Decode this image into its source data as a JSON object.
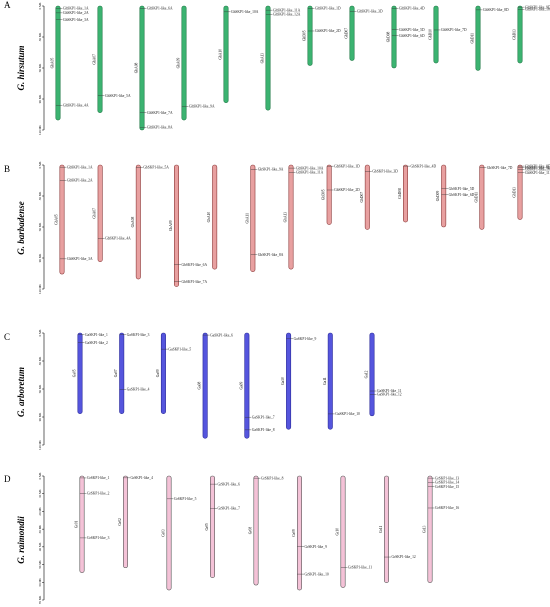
{
  "panels": [
    {
      "letter": "A",
      "species": "G. hirsutum",
      "color": "#3cb371",
      "stroke": "#1f7a46",
      "ticks": [
        "0 Mb",
        "30 Mb",
        "60 Mb",
        "90 Mb",
        "120 Mb"
      ],
      "chromosomes": [
        {
          "name": "GhA05",
          "len": 0.92,
          "genes": [
            {
              "label": "GhSKP1-like_1A",
              "pos": 0.02
            },
            {
              "label": "GhSKP1-like_2A",
              "pos": 0.06
            },
            {
              "label": "GhSKP1-like_3A",
              "pos": 0.12
            },
            {
              "label": "GhSKP1-like_4A",
              "pos": 0.87
            }
          ]
        },
        {
          "name": "GhA07",
          "len": 0.86,
          "genes": [
            {
              "label": "GhSKP1-like_5A",
              "pos": 0.84
            }
          ]
        },
        {
          "name": "GhA08",
          "len": 1.0,
          "genes": [
            {
              "label": "GhSKP1-like_6A",
              "pos": 0.02
            },
            {
              "label": "GhSKP1-like_7A",
              "pos": 0.86
            },
            {
              "label": "GhSKP1-like_8A",
              "pos": 0.98
            }
          ]
        },
        {
          "name": "GhA09",
          "len": 0.92,
          "genes": [
            {
              "label": "GhSKP1-like_9A",
              "pos": 0.88
            }
          ]
        },
        {
          "name": "GhA10",
          "len": 0.78,
          "genes": [
            {
              "label": "GhSKP1-like_10A",
              "pos": 0.06
            }
          ]
        },
        {
          "name": "GhA13",
          "len": 0.84,
          "genes": [
            {
              "label": "GhSKP1-like_11A",
              "pos": 0.04
            },
            {
              "label": "GhSKP1-like_12A",
              "pos": 0.08
            }
          ]
        },
        {
          "name": "GhD05",
          "len": 0.48,
          "genes": [
            {
              "label": "GhSKP1-like_1D",
              "pos": 0.04
            },
            {
              "label": "GhSKP1-like_2D",
              "pos": 0.42
            }
          ]
        },
        {
          "name": "GhD07",
          "len": 0.44,
          "genes": [
            {
              "label": "GhSKP1-like_3D",
              "pos": 0.1
            }
          ]
        },
        {
          "name": "GhD08",
          "len": 0.5,
          "genes": [
            {
              "label": "GhSKP1-like_4D",
              "pos": 0.04
            },
            {
              "label": "GhSKP1-like_5D",
              "pos": 0.38
            },
            {
              "label": "GhSKP1-like_6D",
              "pos": 0.48
            }
          ]
        },
        {
          "name": "GhD10",
          "len": 0.46,
          "genes": [
            {
              "label": "GhSKP1-like_7D",
              "pos": 0.42
            }
          ]
        },
        {
          "name": "GhD11",
          "len": 0.52,
          "genes": [
            {
              "label": "GhSKP1-like_8D",
              "pos": 0.06
            }
          ]
        },
        {
          "name": "GhD13",
          "len": 0.46,
          "genes": [
            {
              "label": "GhSKP1-like_9D",
              "pos": 0.02
            },
            {
              "label": "GhSKP1-like_10D",
              "pos": 0.06
            }
          ]
        }
      ]
    },
    {
      "letter": "B",
      "species": "G. barbadense",
      "color": "#e8a0a0",
      "stroke": "#8c3b3b",
      "ticks": [
        "0 Mb",
        "30 Mb",
        "60 Mb",
        "90 Mb",
        "120 Mb"
      ],
      "chromosomes": [
        {
          "name": "GbA05",
          "len": 0.88,
          "genes": [
            {
              "label": "GbSKP1-like_1A",
              "pos": 0.02
            },
            {
              "label": "GbSKP1-like_2A",
              "pos": 0.14
            },
            {
              "label": "GbSKP1-like_3A",
              "pos": 0.86
            }
          ]
        },
        {
          "name": "GbA07",
          "len": 0.78,
          "genes": [
            {
              "label": "GbSKP1-like_4A",
              "pos": 0.76
            }
          ]
        },
        {
          "name": "GbA08",
          "len": 0.92,
          "genes": [
            {
              "label": "GbSKP1-like_5A",
              "pos": 0.02
            }
          ]
        },
        {
          "name": "GbA09",
          "len": 0.98,
          "genes": [
            {
              "label": "GbSKP1-like_6A",
              "pos": 0.82
            },
            {
              "label": "GbSKP1-like_7A",
              "pos": 0.96
            }
          ]
        },
        {
          "name": "GbA10",
          "len": 0.84,
          "genes": []
        },
        {
          "name": "GbA11",
          "len": 0.86,
          "genes": [
            {
              "label": "GbSKP1-like_8A",
              "pos": 0.84
            },
            {
              "label": "GbSKP1-like_9A",
              "pos": 0.04
            }
          ]
        },
        {
          "name": "GbA13",
          "len": 0.84,
          "genes": [
            {
              "label": "GbSKP1-like_10A",
              "pos": 0.03
            },
            {
              "label": "GbSKP1-like_11A",
              "pos": 0.07
            }
          ]
        },
        {
          "name": "GbD05",
          "len": 0.48,
          "genes": [
            {
              "label": "GbSKP1-like_1D",
              "pos": 0.02
            },
            {
              "label": "GbSKP1-like_2D",
              "pos": 0.42
            }
          ]
        },
        {
          "name": "GbD07",
          "len": 0.52,
          "genes": [
            {
              "label": "GbSKP1-like_3D",
              "pos": 0.1
            }
          ]
        },
        {
          "name": "GbD08",
          "len": 0.46,
          "genes": [
            {
              "label": "GbSKP1-like_4D",
              "pos": 0.02
            }
          ]
        },
        {
          "name": "GbD09",
          "len": 0.5,
          "genes": [
            {
              "label": "GbSKP1-like_5D",
              "pos": 0.38
            },
            {
              "label": "GbSKP1-like_6D",
              "pos": 0.48
            }
          ]
        },
        {
          "name": "GbD11",
          "len": 0.52,
          "genes": [
            {
              "label": "GbSKP1-like_7D",
              "pos": 0.04
            }
          ]
        },
        {
          "name": "GbD13",
          "len": 0.44,
          "genes": [
            {
              "label": "GbSKP1-like_8D",
              "pos": 0.02
            },
            {
              "label": "GbSKP1-like_9D",
              "pos": 0.05
            },
            {
              "label": "GbSKP1-like_10D",
              "pos": 0.08
            },
            {
              "label": "GbSKP1-like_11D",
              "pos": 0.14
            }
          ]
        }
      ]
    },
    {
      "letter": "C",
      "species": "G. arboretum",
      "color": "#5555dd",
      "stroke": "#2a2a99",
      "ticks": [
        "0 Mb",
        "30 Mb",
        "60 Mb",
        "90 Mb",
        "120 Mb"
      ],
      "chromosomes": [
        {
          "name": "Ga05",
          "len": 0.72,
          "genes": [
            {
              "label": "GaSKP1-like_1",
              "pos": 0.02
            },
            {
              "label": "GaSKP1-like_2",
              "pos": 0.12
            }
          ]
        },
        {
          "name": "Ga07",
          "len": 0.72,
          "genes": [
            {
              "label": "GaSKP1-like_3",
              "pos": 0.02
            },
            {
              "label": "GaSKP1-like_4",
              "pos": 0.7
            }
          ]
        },
        {
          "name": "Ga09",
          "len": 0.72,
          "genes": [
            {
              "label": "GaSKP1-like_5",
              "pos": 0.2
            }
          ]
        },
        {
          "name": "Ga08",
          "len": 0.94,
          "genes": [
            {
              "label": "GaSKP1-like_6",
              "pos": 0.02
            }
          ]
        },
        {
          "name": "Ga09",
          "len": 0.94,
          "genes": [
            {
              "label": "GaSKP1-like_7",
              "pos": 0.8
            },
            {
              "label": "GaSKP1-like_8",
              "pos": 0.92
            }
          ]
        },
        {
          "name": "Ga10",
          "len": 0.86,
          "genes": [
            {
              "label": "GaSKP1-like_9",
              "pos": 0.06
            }
          ]
        },
        {
          "name": "Ga11",
          "len": 0.86,
          "genes": [
            {
              "label": "GaSKP1-like_10",
              "pos": 0.84
            }
          ]
        },
        {
          "name": "Ga12",
          "len": 0.74,
          "genes": [
            {
              "label": "GaSKP1-like_11",
              "pos": 0.7
            },
            {
              "label": "GaSKP1-like_12",
              "pos": 0.74
            }
          ]
        }
      ]
    },
    {
      "letter": "D",
      "species": "G. raimondii",
      "color": "#f4c2d7",
      "stroke": "#555555",
      "ticks": [
        "0 Mb",
        "10 Mb",
        "20 Mb",
        "30 Mb",
        "40 Mb",
        "50 Mb",
        "60 Mb",
        "70 Mb"
      ],
      "chromosomes": [
        {
          "name": "Gr01",
          "len": 0.78,
          "genes": [
            {
              "label": "GrSKP1-like_1",
              "pos": 0.02
            },
            {
              "label": "GrSKP1-like_2",
              "pos": 0.18
            },
            {
              "label": "GrSKP1-like_3",
              "pos": 0.64
            }
          ]
        },
        {
          "name": "Gr02",
          "len": 0.74,
          "genes": [
            {
              "label": "GrSKP1-like_4",
              "pos": 0.02
            }
          ]
        },
        {
          "name": "Gr03",
          "len": 0.92,
          "genes": [
            {
              "label": "GrSKP1-like_5",
              "pos": 0.2
            }
          ]
        },
        {
          "name": "Gr05",
          "len": 0.82,
          "genes": [
            {
              "label": "GrSKP1-like_6",
              "pos": 0.08
            },
            {
              "label": "GrSKP1-like_7",
              "pos": 0.32
            }
          ]
        },
        {
          "name": "Gr08",
          "len": 0.88,
          "genes": [
            {
              "label": "GrSKP1-like_8",
              "pos": 0.02
            }
          ]
        },
        {
          "name": "Gr09",
          "len": 0.92,
          "genes": [
            {
              "label": "GrSKP1-like_9",
              "pos": 0.62
            },
            {
              "label": "GrSKP1-like_10",
              "pos": 0.86
            }
          ]
        },
        {
          "name": "Gr10",
          "len": 0.9,
          "genes": [
            {
              "label": "GrSKP1-like_11",
              "pos": 0.82
            }
          ]
        },
        {
          "name": "Gr11",
          "len": 0.86,
          "genes": [
            {
              "label": "GrSKP1-like_12",
              "pos": 0.76
            }
          ]
        },
        {
          "name": "Gr13",
          "len": 0.86,
          "genes": [
            {
              "label": "GrSKP1-like_13",
              "pos": 0.02
            },
            {
              "label": "GrSKP1-like_14",
              "pos": 0.06
            },
            {
              "label": "GrSKP1-like_15",
              "pos": 0.1
            },
            {
              "label": "GrSKP1-like_16",
              "pos": 0.3
            }
          ]
        }
      ]
    }
  ]
}
